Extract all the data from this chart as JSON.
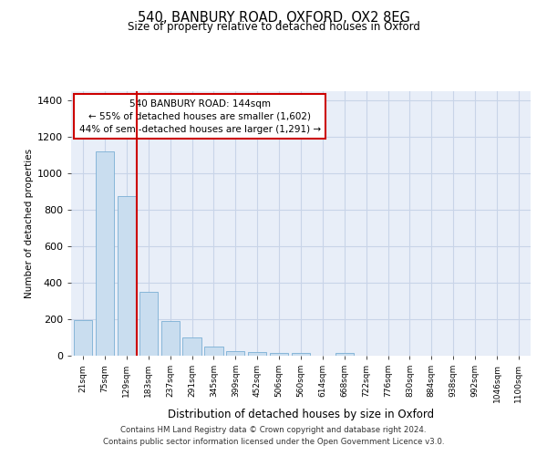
{
  "title": "540, BANBURY ROAD, OXFORD, OX2 8EG",
  "subtitle": "Size of property relative to detached houses in Oxford",
  "xlabel": "Distribution of detached houses by size in Oxford",
  "ylabel": "Number of detached properties",
  "footnote1": "Contains HM Land Registry data © Crown copyright and database right 2024.",
  "footnote2": "Contains public sector information licensed under the Open Government Licence v3.0.",
  "annotation_title": "540 BANBURY ROAD: 144sqm",
  "annotation_line1": "← 55% of detached houses are smaller (1,602)",
  "annotation_line2": "44% of semi-detached houses are larger (1,291) →",
  "bar_color": "#c9ddef",
  "bar_edge_color": "#7aafd4",
  "grid_color": "#c8d4e8",
  "background_color": "#ffffff",
  "plot_bg_color": "#e8eef8",
  "red_line_color": "#cc0000",
  "annotation_box_edge": "#cc0000",
  "categories": [
    "21sqm",
    "75sqm",
    "129sqm",
    "183sqm",
    "237sqm",
    "291sqm",
    "345sqm",
    "399sqm",
    "452sqm",
    "506sqm",
    "560sqm",
    "614sqm",
    "668sqm",
    "722sqm",
    "776sqm",
    "830sqm",
    "884sqm",
    "938sqm",
    "992sqm",
    "1046sqm",
    "1100sqm"
  ],
  "values": [
    195,
    1120,
    875,
    350,
    190,
    100,
    50,
    25,
    20,
    15,
    15,
    0,
    15,
    0,
    0,
    0,
    0,
    0,
    0,
    0,
    0
  ],
  "red_line_x": 2.45,
  "ylim": [
    0,
    1450
  ],
  "yticks": [
    0,
    200,
    400,
    600,
    800,
    1000,
    1200,
    1400
  ]
}
